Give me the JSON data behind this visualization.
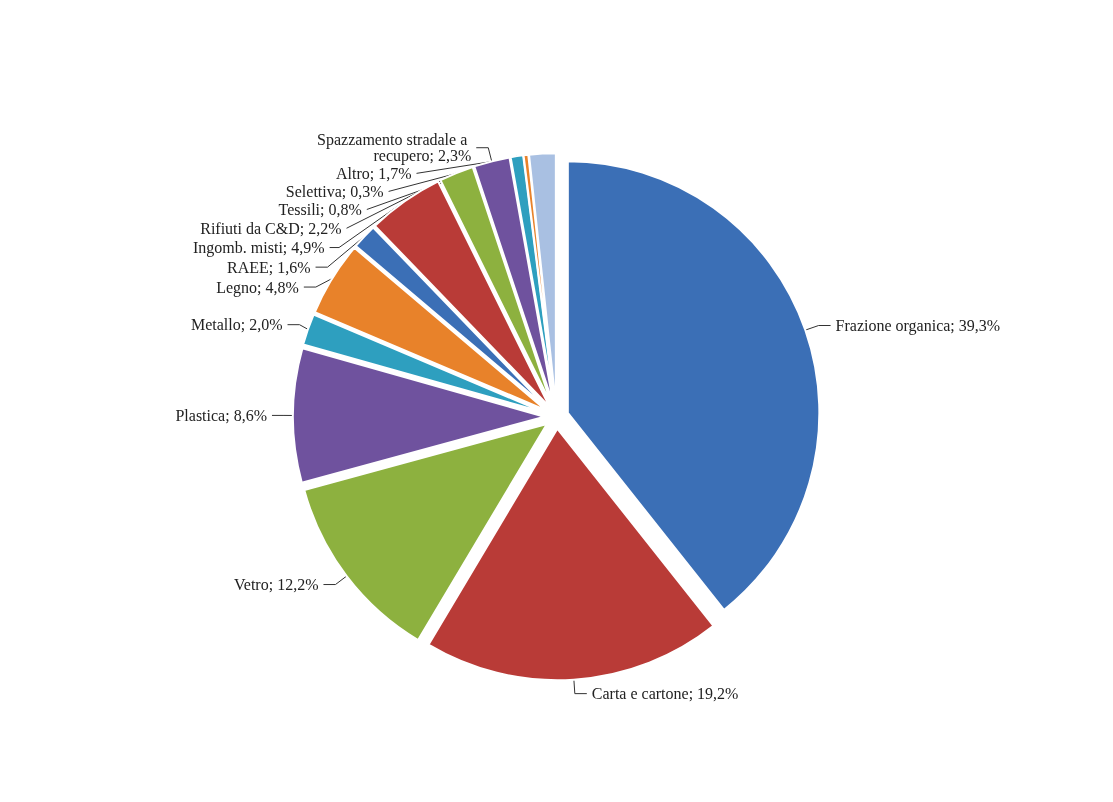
{
  "chart_data": {
    "type": "pie",
    "categories": [
      "Frazione organica",
      "Carta e cartone",
      "Vetro",
      "Plastica",
      "Metallo",
      "Legno",
      "RAEE",
      "Ingomb. misti",
      "Rifiuti da C&D",
      "Spazzamento stradale a recupero",
      "Tessili",
      "Selettiva",
      "Altro"
    ],
    "values": [
      39.3,
      19.2,
      12.2,
      8.6,
      2.0,
      4.8,
      1.6,
      4.9,
      2.2,
      2.3,
      0.8,
      0.3,
      1.7
    ],
    "colors": [
      "#3b6fb6",
      "#b93b37",
      "#8db13f",
      "#6f529e",
      "#2e9fbf",
      "#e8822a",
      "#3b6fb6",
      "#b93b37",
      "#8db13f",
      "#6f529e",
      "#2e9fbf",
      "#e8822a",
      "#a9c0e2"
    ],
    "value_labels": [
      "39,3%",
      "19,2%",
      "12,2%",
      "8,6%",
      "2,0%",
      "4,8%",
      "1,6%",
      "4,9%",
      "2,2%",
      "2,3%",
      "0,8%",
      "0,3%",
      "1,7%"
    ]
  }
}
